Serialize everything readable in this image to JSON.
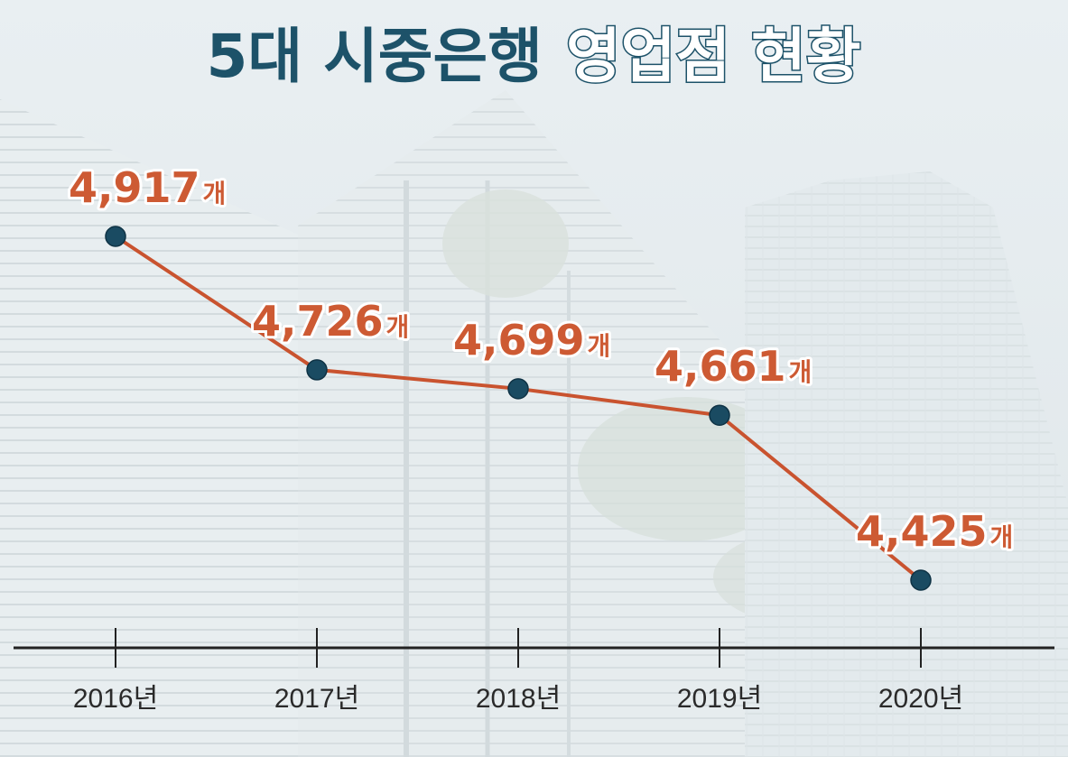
{
  "title": {
    "part1": "5대 시중은행",
    "part2": "영업점 현황"
  },
  "colors": {
    "title_dark": "#1d5269",
    "line": "#c9532f",
    "point": "#1a4b62",
    "label_fill": "#cd5a33",
    "axis": "#222222"
  },
  "chart_data": {
    "type": "line",
    "title": "5대 시중은행 영업점 현황",
    "categories": [
      "2016년",
      "2017년",
      "2018년",
      "2019년",
      "2020년"
    ],
    "series": [
      {
        "values": [
          4917,
          4726,
          4699,
          4661,
          4425
        ],
        "labels": [
          "4,917",
          "4,726",
          "4,699",
          "4,661",
          "4,425"
        ]
      }
    ],
    "unit": "개",
    "xlabel": "",
    "ylabel": "",
    "ylim": [
      4425,
      4917
    ],
    "grid": false,
    "legend": "none"
  }
}
